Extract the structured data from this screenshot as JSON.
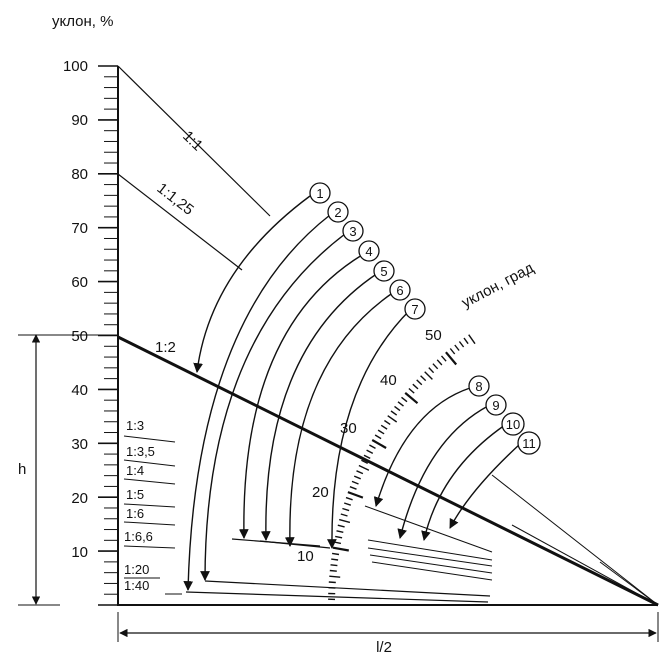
{
  "axis_title": "уклон, %",
  "y_ticks": [
    "10",
    "20",
    "30",
    "40",
    "50",
    "60",
    "70",
    "80",
    "90",
    "100"
  ],
  "height_label": "h",
  "half_span_label": "l/2",
  "degree_scale_title": "уклон, град",
  "degree_scale_labels": [
    "10",
    "20",
    "30",
    "40",
    "50"
  ],
  "ratio_labels": {
    "r_1_1": "1:1",
    "r_1_125": "1:1,25",
    "r_1_2": "1:2",
    "r_1_3": "1:3",
    "r_1_35": "1:3,5",
    "r_1_4": "1:4",
    "r_1_5": "1:5",
    "r_1_6": "1:6",
    "r_1_66": "1:6,6",
    "r_1_20": "1:20",
    "r_1_40": "1:40"
  },
  "callouts": [
    "1",
    "2",
    "3",
    "4",
    "5",
    "6",
    "7",
    "8",
    "9",
    "10",
    "11"
  ]
}
